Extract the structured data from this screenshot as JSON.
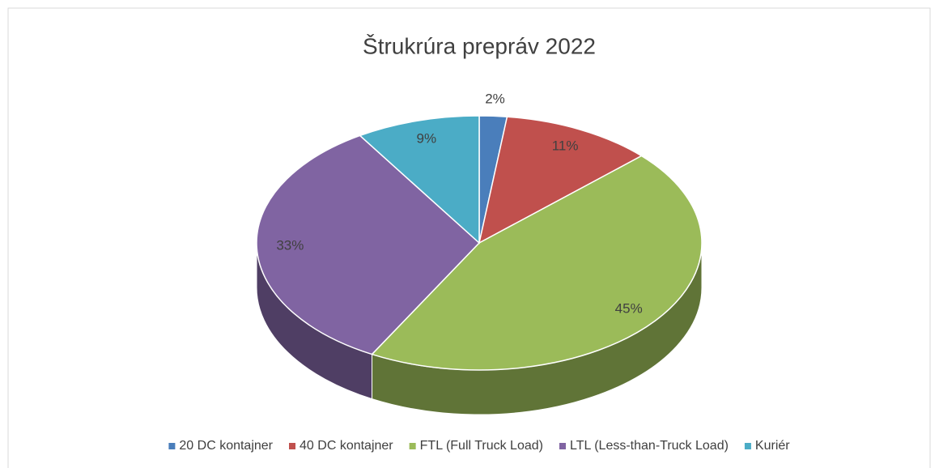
{
  "chart_data": {
    "type": "pie",
    "title": "Štrukrúra prepráv 2022",
    "categories": [
      "20 DC kontajner",
      "40 DC kontajner",
      "FTL (Full Truck Load)",
      "LTL (Less-than-Truck Load)",
      "Kuriér"
    ],
    "values": [
      2,
      11,
      45,
      33,
      9
    ],
    "value_labels": [
      "2%",
      "11%",
      "45%",
      "33%",
      "9%"
    ],
    "colors": [
      "#4a7ebb",
      "#c0504d",
      "#9bbb59",
      "#8064a2",
      "#4bacc6"
    ],
    "legend": "bottom"
  }
}
